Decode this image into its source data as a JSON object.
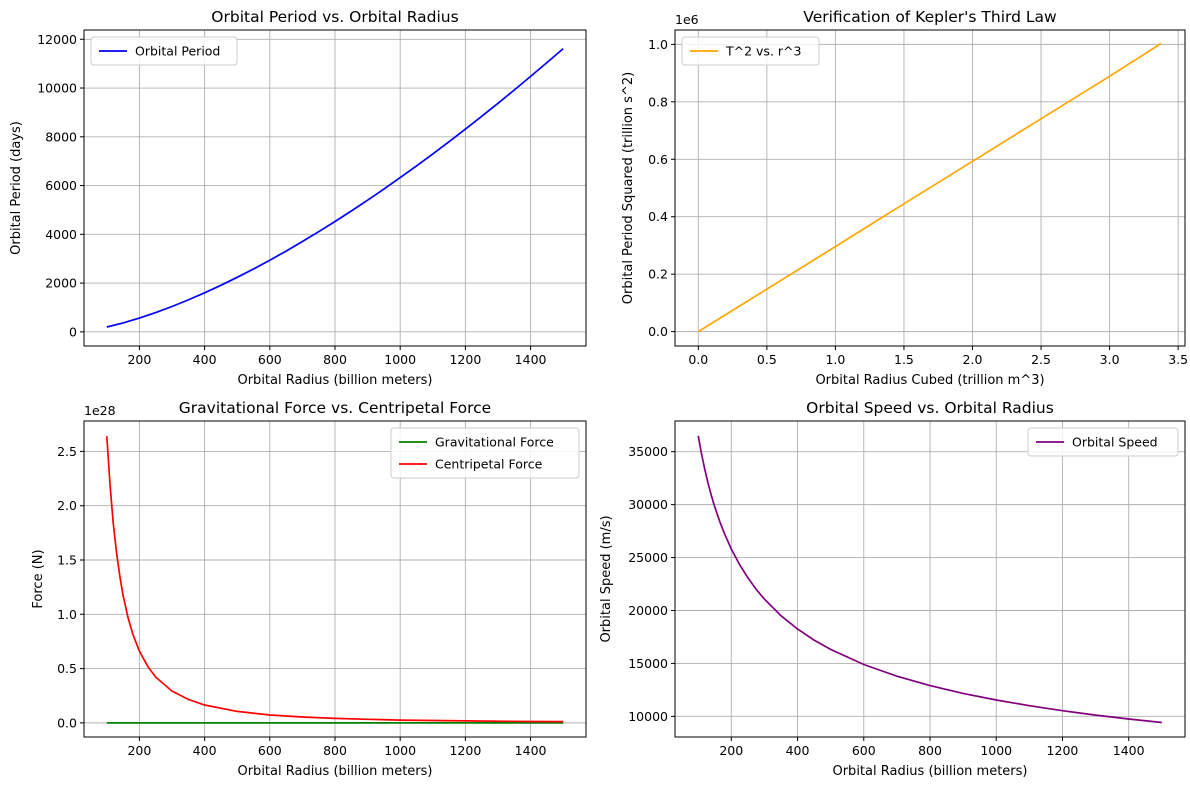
{
  "figure": {
    "background": "#ffffff",
    "grid_color": "#b0b0b0"
  },
  "chart_data": [
    {
      "type": "line",
      "title": "Orbital Period vs. Orbital Radius",
      "xlabel": "Orbital Radius (billion meters)",
      "ylabel": "Orbital Period (days)",
      "offset_text": "",
      "xlim": [
        30,
        1570
      ],
      "ylim": [
        -580,
        12380
      ],
      "xticks": [
        200,
        400,
        600,
        800,
        1000,
        1200,
        1400
      ],
      "xtick_labels": [
        "200",
        "400",
        "600",
        "800",
        "1000",
        "1200",
        "1400"
      ],
      "yticks": [
        0,
        2000,
        4000,
        6000,
        8000,
        10000,
        12000
      ],
      "ytick_labels": [
        "0",
        "2000",
        "4000",
        "6000",
        "8000",
        "10000",
        "12000"
      ],
      "grid": true,
      "legend": "upper-left",
      "series": [
        {
          "name": "Orbital Period",
          "color": "#0000ff",
          "x": [
            100,
            150,
            200,
            250,
            300,
            350,
            400,
            450,
            500,
            550,
            600,
            650,
            700,
            750,
            800,
            850,
            900,
            950,
            1000,
            1050,
            1100,
            1150,
            1200,
            1250,
            1300,
            1350,
            1400,
            1450,
            1500
          ],
          "y": [
            200,
            367,
            566,
            790,
            1039,
            1310,
            1600,
            1909,
            2236,
            2580,
            2939,
            3314,
            3704,
            4108,
            4525,
            4956,
            5400,
            5856,
            6325,
            6805,
            7297,
            7800,
            8314,
            8839,
            9374,
            9920,
            10475,
            11041,
            11617
          ]
        }
      ]
    },
    {
      "type": "line",
      "title": "Verification of Kepler's Third Law",
      "xlabel": "Orbital Radius Cubed (trillion m^3)",
      "ylabel": "Orbital Period Squared (trillion s^2)",
      "offset_text": "1e6",
      "xlim": [
        -0.17,
        3.55
      ],
      "ylim": [
        -0.05,
        1.05
      ],
      "xticks": [
        0,
        0.5,
        1,
        1.5,
        2,
        2.5,
        3,
        3.5
      ],
      "xtick_labels": [
        "0.0",
        "0.5",
        "1.0",
        "1.5",
        "2.0",
        "2.5",
        "3.0",
        "3.5"
      ],
      "yticks": [
        0,
        0.2,
        0.4,
        0.6,
        0.8,
        1.0
      ],
      "ytick_labels": [
        "0.0",
        "0.2",
        "0.4",
        "0.6",
        "0.8",
        "1.0"
      ],
      "grid": true,
      "legend": "upper-left",
      "series": [
        {
          "name": "T^2 vs. r^3",
          "color": "#ffa500",
          "x": [
            0.0,
            0.5,
            1.0,
            1.5,
            2.0,
            2.5,
            3.0,
            3.375
          ],
          "y": [
            0.0,
            0.148,
            0.296,
            0.445,
            0.593,
            0.741,
            0.889,
            1.003
          ]
        }
      ]
    },
    {
      "type": "line",
      "title": "Gravitational Force vs. Centripetal Force",
      "xlabel": "Orbital Radius (billion meters)",
      "ylabel": "Force (N)",
      "offset_text": "1e28",
      "xlim": [
        30,
        1570
      ],
      "ylim": [
        -0.13,
        2.78
      ],
      "xticks": [
        200,
        400,
        600,
        800,
        1000,
        1200,
        1400
      ],
      "xtick_labels": [
        "200",
        "400",
        "600",
        "800",
        "1000",
        "1200",
        "1400"
      ],
      "yticks": [
        0,
        0.5,
        1.0,
        1.5,
        2.0,
        2.5
      ],
      "ytick_labels": [
        "0.0",
        "0.5",
        "1.0",
        "1.5",
        "2.0",
        "2.5"
      ],
      "grid": true,
      "legend": "upper-right",
      "series": [
        {
          "name": "Gravitational Force",
          "color": "#008000",
          "x": [
            100,
            1500
          ],
          "y": [
            0.0,
            0.0
          ]
        },
        {
          "name": "Centripetal Force",
          "color": "#ff0000",
          "x": [
            100,
            110,
            120,
            130,
            140,
            150,
            165,
            180,
            200,
            225,
            250,
            300,
            350,
            400,
            500,
            600,
            700,
            800,
            900,
            1000,
            1200,
            1400,
            1500
          ],
          "y": [
            2.64,
            2.182,
            1.833,
            1.562,
            1.347,
            1.173,
            0.97,
            0.815,
            0.66,
            0.522,
            0.422,
            0.293,
            0.216,
            0.165,
            0.106,
            0.073,
            0.054,
            0.041,
            0.033,
            0.026,
            0.018,
            0.013,
            0.012
          ]
        }
      ]
    },
    {
      "type": "line",
      "title": "Orbital Speed vs. Orbital Radius",
      "xlabel": "Orbital Radius (billion meters)",
      "ylabel": "Orbital Speed (m/s)",
      "offset_text": "",
      "xlim": [
        30,
        1570
      ],
      "ylim": [
        8050,
        37900
      ],
      "xticks": [
        200,
        400,
        600,
        800,
        1000,
        1200,
        1400
      ],
      "xtick_labels": [
        "200",
        "400",
        "600",
        "800",
        "1000",
        "1200",
        "1400"
      ],
      "yticks": [
        10000,
        15000,
        20000,
        25000,
        30000,
        35000
      ],
      "ytick_labels": [
        "10000",
        "15000",
        "20000",
        "25000",
        "30000",
        "35000"
      ],
      "grid": true,
      "legend": "upper-right",
      "series": [
        {
          "name": "Orbital Speed",
          "color": "#800080",
          "x": [
            100,
            110,
            120,
            130,
            140,
            150,
            165,
            180,
            200,
            225,
            250,
            275,
            300,
            350,
            400,
            450,
            500,
            600,
            700,
            800,
            900,
            1000,
            1100,
            1200,
            1300,
            1400,
            1500
          ],
          "y": [
            36500,
            34801,
            33320,
            32013,
            30848,
            29802,
            28415,
            27206,
            25810,
            24334,
            23085,
            22011,
            21074,
            19510,
            18250,
            17206,
            16323,
            14901,
            13796,
            12904,
            12167,
            11542,
            11005,
            10537,
            10123,
            9755,
            9424
          ]
        }
      ]
    }
  ]
}
